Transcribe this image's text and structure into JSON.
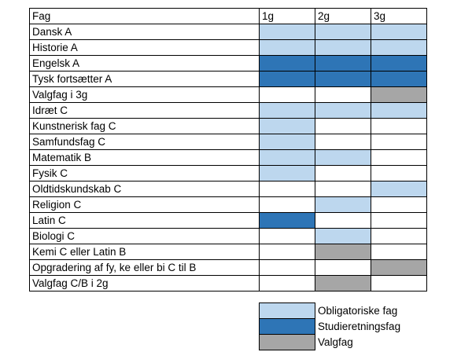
{
  "colors": {
    "obligatorisk": "#bdd7ee",
    "studieretning": "#2e75b6",
    "valgfag": "#a6a6a6",
    "none": "#ffffff"
  },
  "table": {
    "header": {
      "subject": "Fag",
      "years": [
        "1g",
        "2g",
        "3g"
      ]
    },
    "rows": [
      {
        "subject": "Dansk A",
        "cells": [
          "obligatorisk",
          "obligatorisk",
          "obligatorisk"
        ]
      },
      {
        "subject": "Historie A",
        "cells": [
          "obligatorisk",
          "obligatorisk",
          "obligatorisk"
        ]
      },
      {
        "subject": "Engelsk A",
        "cells": [
          "studieretning",
          "studieretning",
          "studieretning"
        ]
      },
      {
        "subject": "Tysk fortsætter A",
        "cells": [
          "studieretning",
          "studieretning",
          "studieretning"
        ]
      },
      {
        "subject": "Valgfag i 3g",
        "cells": [
          "none",
          "none",
          "valgfag"
        ]
      },
      {
        "subject": "Idræt C",
        "cells": [
          "obligatorisk",
          "obligatorisk",
          "obligatorisk"
        ]
      },
      {
        "subject": "Kunstnerisk fag C",
        "cells": [
          "obligatorisk",
          "none",
          "none"
        ]
      },
      {
        "subject": "Samfundsfag C",
        "cells": [
          "obligatorisk",
          "none",
          "none"
        ]
      },
      {
        "subject": "Matematik B",
        "cells": [
          "obligatorisk",
          "obligatorisk",
          "none"
        ]
      },
      {
        "subject": "Fysik C",
        "cells": [
          "obligatorisk",
          "none",
          "none"
        ]
      },
      {
        "subject": "Oldtidskundskab C",
        "cells": [
          "none",
          "none",
          "obligatorisk"
        ]
      },
      {
        "subject": "Religion C",
        "cells": [
          "none",
          "obligatorisk",
          "none"
        ]
      },
      {
        "subject": "Latin C",
        "cells": [
          "studieretning",
          "none",
          "none"
        ]
      },
      {
        "subject": "Biologi C",
        "cells": [
          "none",
          "obligatorisk",
          "none"
        ]
      },
      {
        "subject": "Kemi C eller Latin B",
        "cells": [
          "none",
          "valgfag",
          "none"
        ]
      },
      {
        "subject": "Opgradering af fy, ke eller bi C til B",
        "cells": [
          "none",
          "none",
          "valgfag"
        ]
      },
      {
        "subject": "Valgfag C/B i 2g",
        "cells": [
          "none",
          "valgfag",
          "none"
        ]
      }
    ]
  },
  "legend": [
    {
      "key": "obligatorisk",
      "label": "Obligatoriske fag"
    },
    {
      "key": "studieretning",
      "label": "Studieretningsfag"
    },
    {
      "key": "valgfag",
      "label": "Valgfag"
    }
  ]
}
